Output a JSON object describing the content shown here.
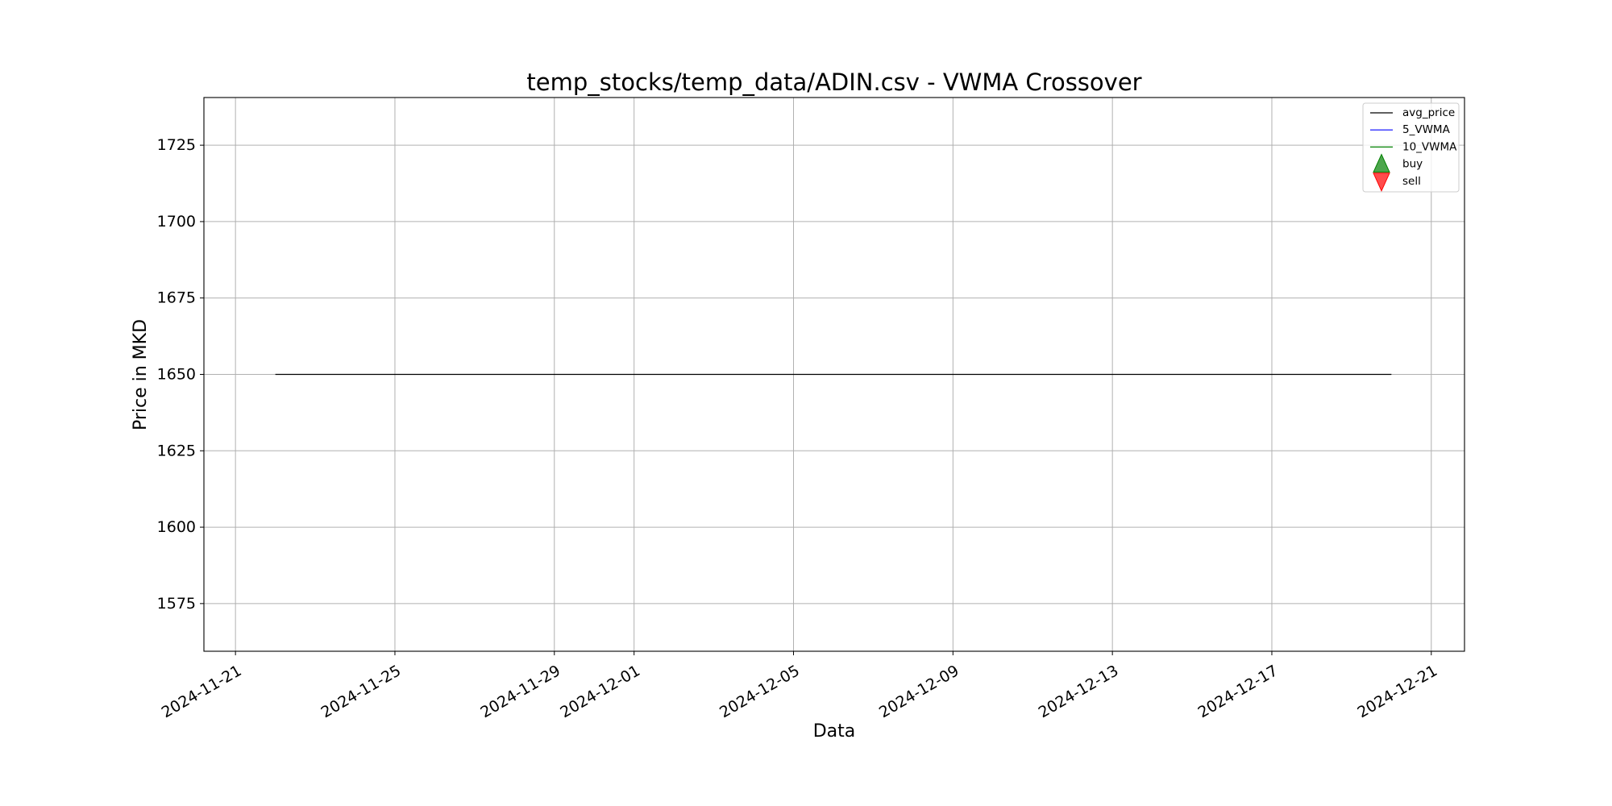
{
  "chart_data": {
    "type": "line",
    "title": "temp_stocks/temp_data/ADIN.csv - VWMA Crossover",
    "xlabel": "Data",
    "ylabel": "Price in MKD",
    "xlim": [
      "2024-11-20T05:00",
      "2024-12-21T20:00"
    ],
    "ylim": [
      1559.4,
      1740.6
    ],
    "x_ticks": [
      "2024-11-21",
      "2024-11-25",
      "2024-11-29",
      "2024-12-01",
      "2024-12-05",
      "2024-12-09",
      "2024-12-13",
      "2024-12-17",
      "2024-12-21"
    ],
    "y_ticks": [
      1575,
      1600,
      1625,
      1650,
      1675,
      1700,
      1725
    ],
    "grid": true,
    "legend_position": "upper right",
    "series": [
      {
        "name": "avg_price",
        "kind": "line",
        "color": "#000000",
        "points": [
          {
            "x": "2024-11-22",
            "y": 1650
          },
          {
            "x": "2024-12-20",
            "y": 1650
          }
        ]
      },
      {
        "name": "5_VWMA",
        "kind": "line",
        "color": "#0000ff",
        "points": []
      },
      {
        "name": "10_VWMA",
        "kind": "line",
        "color": "#008000",
        "points": []
      },
      {
        "name": "buy",
        "kind": "marker-up",
        "color": "#008000",
        "points": []
      },
      {
        "name": "sell",
        "kind": "marker-down",
        "color": "#ff0000",
        "points": []
      }
    ]
  }
}
